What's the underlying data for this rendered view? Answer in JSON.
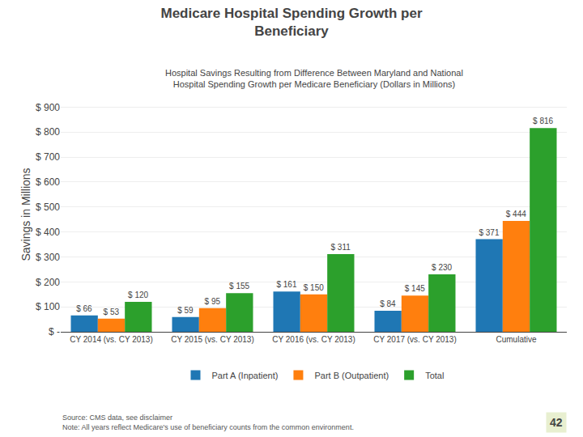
{
  "chart_data": {
    "type": "bar",
    "title": "Medicare Hospital Spending Growth per\nBeneficiary",
    "subtitle": "Hospital Savings Resulting from Difference Between Maryland and National\nHospital Spending Growth per Medicare Beneficiary (Dollars in Millions)",
    "ylabel": "Savings in Millions",
    "categories": [
      "CY 2014 (vs. CY 2013)",
      "CY 2015 (vs. CY 2013)",
      "CY 2016 (vs. CY 2013)",
      "CY 2017 (vs. CY 2013)",
      "Cumulative"
    ],
    "series": [
      {
        "name": "Part A (Inpatient)",
        "values": [
          66,
          59,
          161,
          84,
          371
        ],
        "value_labels": [
          "$ 66",
          "$ 59",
          "$ 161",
          "$ 84",
          "$ 371"
        ]
      },
      {
        "name": "Part B (Outpatient)",
        "values": [
          53,
          95,
          150,
          145,
          444
        ],
        "value_labels": [
          "$ 53",
          "$ 95",
          "$ 150",
          "$ 145",
          "$ 444"
        ]
      },
      {
        "name": "Total",
        "values": [
          120,
          155,
          311,
          230,
          816
        ],
        "value_labels": [
          "$ 120",
          "$ 155",
          "$ 311",
          "$ 230",
          "$ 816"
        ]
      }
    ],
    "ylim": [
      0,
      940
    ],
    "yticks": [
      {
        "value": 0,
        "label": "$ -"
      },
      {
        "value": 100,
        "label": "$ 100"
      },
      {
        "value": 200,
        "label": "$ 200"
      },
      {
        "value": 300,
        "label": "$ 300"
      },
      {
        "value": 400,
        "label": "$ 400"
      },
      {
        "value": 500,
        "label": "$ 500"
      },
      {
        "value": 600,
        "label": "$ 600"
      },
      {
        "value": 700,
        "label": "$ 700"
      },
      {
        "value": 800,
        "label": "$ 800"
      },
      {
        "value": 900,
        "label": "$ 900"
      }
    ],
    "grid": true,
    "legend": "bottom",
    "data_labels": true,
    "annotations": [
      "Source: CMS data, see disclaimer\nNote: All years reflect Medicare's use of beneficiary counts from the common environment.",
      "42"
    ]
  }
}
